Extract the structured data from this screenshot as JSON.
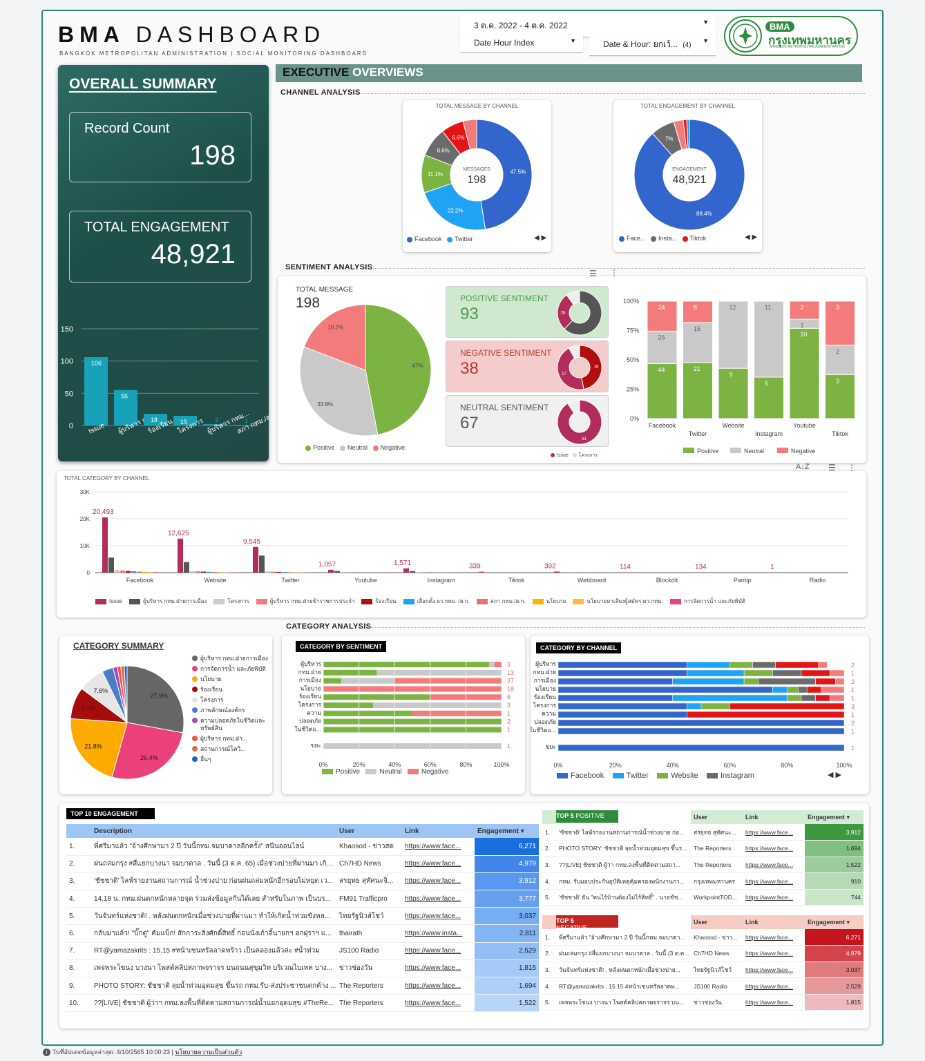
{
  "header": {
    "brand_bold": "BMA",
    "brand_light": "DASHBOARD",
    "subtitle": "BANGKOK METROPOLITAN ADMINISTRATION | SOCIAL MONITORING DASHBOARD",
    "date_range": "3 ต.ค. 2022 - 4 ต.ค. 2022",
    "filter1": "Date Hour Index",
    "filter2": "Date & Hour: ยกเว้...",
    "filter2_count": "(4)",
    "logo_top": "BMA",
    "logo_main": "กรุงเทพมหานคร",
    "logo_sub": "BANGKOK METROPOLITAN ADMINISTRATION"
  },
  "sidebar": {
    "title": "OVERALL SUMMARY",
    "record_label": "Record Count",
    "record_value": "198",
    "eng_label": "TOTAL ENGAGEMENT",
    "eng_value": "48,921"
  },
  "sidebar_chart": {
    "type": "bar",
    "categories": [
      "Issue",
      "ผู้บริหาร กทม...",
      "ร้องเรียน",
      "โครงการ",
      "ผู้บริหาร กทม...",
      "สภา กทม./ส..."
    ],
    "values": [
      106,
      55,
      18,
      15,
      2,
      1
    ],
    "yticks": [
      "150",
      "100",
      "50",
      "0"
    ],
    "ylim": [
      0,
      150
    ],
    "color": "#17a2b8"
  },
  "exec": {
    "title_bold": "EXECUTIVE",
    "title_light": "OVERVIEWS",
    "channel_label": "CHANNEL ANALYSIS",
    "sentiment_label": "SENTIMENT ANALYSIS",
    "category_label": "CATEGORY ANALYSIS"
  },
  "msg_donut": {
    "title": "TOTAL MESSAGE BY CHANNEL",
    "center_label": "MESSAGES",
    "center_value": "198",
    "legend": [
      "Facebook",
      "Twitter"
    ],
    "slices": [
      {
        "label": "47.5%",
        "value": 47.5,
        "color": "#3366cc"
      },
      {
        "label": "22.2%",
        "value": 22.2,
        "color": "#1fa3f2"
      },
      {
        "label": "11.1%",
        "value": 11.1,
        "color": "#7cb342"
      },
      {
        "label": "8.6%",
        "value": 8.6,
        "color": "#6b6b6b"
      },
      {
        "label": "6.6%",
        "value": 6.6,
        "color": "#e31414"
      },
      {
        "label": "",
        "value": 4.0,
        "color": "#f47b7b"
      }
    ]
  },
  "eng_donut": {
    "title": "TOTAL ENGAGEMENT BY CHANNEL",
    "center_label": "ENGAGEMENT",
    "center_value": "48,921",
    "legend": [
      "Face...",
      "Insta...",
      "Tiktok"
    ],
    "slices": [
      {
        "label": "88.4%",
        "value": 88.4,
        "color": "#3366cc"
      },
      {
        "label": "7%",
        "value": 7.0,
        "color": "#6b6b6b"
      },
      {
        "label": "",
        "value": 2.8,
        "color": "#f47b7b"
      },
      {
        "label": "",
        "value": 1.0,
        "color": "#e31414"
      },
      {
        "label": "",
        "value": 0.8,
        "color": "#1fa3f2"
      }
    ]
  },
  "sentiment_pie": {
    "label": "TOTAL MESSAGE",
    "value": "198",
    "legend": [
      "Positive",
      "Neutral",
      "Negative"
    ],
    "slices": [
      {
        "label": "47%",
        "value": 47,
        "color": "#7cb342"
      },
      {
        "label": "33.8%",
        "value": 33.8,
        "color": "#c9c9c9"
      },
      {
        "label": "19.2%",
        "value": 19.2,
        "color": "#f47b7b"
      }
    ]
  },
  "sentiment_cards": [
    {
      "label": "POSITIVE SENTIMENT",
      "value": "93",
      "bg": "#cfe8cf",
      "fg": "#4c9a4c",
      "ring": [
        {
          "label": "",
          "value": 62,
          "color": "#555"
        },
        {
          "label": "28",
          "value": 28,
          "color": "#b22d5b"
        },
        {
          "label": "",
          "value": 10,
          "color": "#eee"
        }
      ]
    },
    {
      "label": "NEGATIVE SENTIMENT",
      "value": "38",
      "bg": "#f4cccc",
      "fg": "#c0392b",
      "ring": [
        {
          "label": "18",
          "value": 47,
          "color": "#b30d0d"
        },
        {
          "label": "17",
          "value": 45,
          "color": "#b22d5b"
        },
        {
          "label": "",
          "value": 8,
          "color": "#eee"
        }
      ]
    },
    {
      "label": "NEUTRAL SENTIMENT",
      "value": "67",
      "bg": "#f0f0f0",
      "fg": "#555",
      "ring": [
        {
          "label": "61",
          "value": 91,
          "color": "#b22d5b"
        },
        {
          "label": "",
          "value": 9,
          "color": "#eee"
        }
      ]
    }
  ],
  "ring_legend": [
    "Issue",
    "โครงการ"
  ],
  "stacked_channel": {
    "type": "bar",
    "yticks": [
      "100%",
      "75%",
      "50%",
      "25%",
      "0%"
    ],
    "channels": [
      "Facebook",
      "Twitter",
      "Website",
      "Instagram",
      "Youtube",
      "Tiktok"
    ],
    "positive": [
      44,
      21,
      9,
      6,
      10,
      3
    ],
    "neutral": [
      26,
      15,
      12,
      11,
      1,
      2
    ],
    "negative": [
      24,
      8,
      0,
      0,
      2,
      3
    ],
    "neutral_labels": [
      "26",
      "15",
      "12",
      "11",
      "1",
      "2"
    ],
    "negative_labels": [
      "24",
      "8",
      "",
      "",
      "2",
      "3"
    ],
    "positive_labels": [
      "44",
      "21",
      "9",
      "6",
      "10",
      "3"
    ],
    "legend": [
      "Positive",
      "Neutral",
      "Negative"
    ]
  },
  "category_by_channel": {
    "title": "TOTAL CATEGORY BY CHANNEL",
    "yticks": [
      "30K",
      "20K",
      "10K",
      "0"
    ],
    "channels": [
      "Facebook",
      "Website",
      "Twitter",
      "Youtube",
      "Instagram",
      "Tiktok",
      "Webboard",
      "Blockdit",
      "Pantip",
      "Radio"
    ],
    "top_labels": [
      "20,493",
      "12,625",
      "9,545",
      "1,057",
      "1,571",
      "339",
      "392",
      "114",
      "134",
      "1"
    ],
    "issue": [
      20493,
      12625,
      9545,
      1057,
      1571,
      339,
      392,
      114,
      134,
      1
    ],
    "second": [
      5591,
      3910,
      6322,
      600,
      560,
      60,
      120,
      20,
      0,
      0
    ],
    "legend": [
      "Issue",
      "ผู้บริหาร กทม.ฝ่ายการเมือง",
      "โครงการ",
      "ผู้บริหาร กทม.ฝ่ายข้าราชการประจำ",
      "ร้องเรียน",
      "เลือกตั้ง ผว.กทม. /ส.ก.",
      "สภา กทม./ส.ก.",
      "นโยบาย",
      "นโยบายหาเสียงผู้สมัคร ผว.กทม.",
      "การจัดการน้ำ และภัยพิบัติ"
    ],
    "legend_colors": [
      "#b22d5b",
      "#555555",
      "#cccccc",
      "#f47b7b",
      "#b30d0d",
      "#1fa3f2",
      "#e57373",
      "#ffb300",
      "#ffb74d",
      "#ec407a"
    ]
  },
  "category_summary": {
    "title": "CATEGORY SUMMARY",
    "slices": [
      {
        "label": "27.9%",
        "value": 27.9,
        "color": "#666666"
      },
      {
        "label": "26.4%",
        "value": 26.4,
        "color": "#ec407a"
      },
      {
        "label": "21.8%",
        "value": 21.8,
        "color": "#ffaa00"
      },
      {
        "label": "9.1%",
        "value": 9.1,
        "color": "#a50d0d"
      },
      {
        "label": "7.6%",
        "value": 7.6,
        "color": "#e6e6e6"
      },
      {
        "label": "",
        "value": 3.2,
        "color": "#4a7fc1"
      },
      {
        "label": "",
        "value": 1.2,
        "color": "#ab47bc"
      },
      {
        "label": "",
        "value": 1.0,
        "color": "#ef5350"
      },
      {
        "label": "",
        "value": 1.0,
        "color": "#d4704a"
      },
      {
        "label": "",
        "value": 0.8,
        "color": "#1565c0"
      }
    ],
    "legend": [
      {
        "text": "ผู้บริหาร กทม.ฝ่ายการเมือง",
        "color": "#666666"
      },
      {
        "text": "การจัดการน้ำ และภัยพิบัติ",
        "color": "#ec407a"
      },
      {
        "text": "นโยบาย",
        "color": "#ffaa00"
      },
      {
        "text": "ร้องเรียน",
        "color": "#a50d0d"
      },
      {
        "text": "โครงการ",
        "color": "#e6e6e6"
      },
      {
        "text": "ภาพลักษณ์องค์กร",
        "color": "#4a7fc1"
      },
      {
        "text": "ความปลอดภัยในชีวิตและทรัพย์สิน",
        "color": "#ab47bc"
      },
      {
        "text": "ผู้บริหาร กทม.ฝ่า...",
        "color": "#ef5350"
      },
      {
        "text": "สถานการณ์โควิ...",
        "color": "#d4704a"
      },
      {
        "text": "อื่นๆ",
        "color": "#1565c0"
      }
    ]
  },
  "cat_sentiment": {
    "title": "CATEGORY BY SENTIMENT",
    "rows": [
      "ผู้บริหาร",
      "กทม.ฝ่าย",
      "การเมือง",
      "นโยบาย",
      "ร้องเรียน",
      "โครงการ",
      "ความ",
      "ปลอดภัย",
      "ในชีวิตแ...",
      "",
      "ขยะ"
    ],
    "positive": [
      93,
      30,
      10,
      0,
      60,
      28,
      50,
      100,
      100,
      0,
      0
    ],
    "neutral": [
      3,
      70,
      30,
      0,
      0,
      72,
      0,
      0,
      0,
      0,
      100
    ],
    "negative": [
      4,
      0,
      60,
      100,
      40,
      0,
      50,
      0,
      0,
      0,
      0
    ],
    "right_labels": [
      "3",
      "13",
      "37",
      "18",
      "6",
      "3",
      "1",
      "2",
      "1",
      "",
      "1"
    ],
    "xticks": [
      "0%",
      "20%",
      "40%",
      "60%",
      "80%",
      "100%"
    ],
    "legend": [
      "Positive",
      "Neutral",
      "Negative"
    ]
  },
  "cat_channel": {
    "title": "CATEGORY BY CHANNEL",
    "rows": [
      "ผู้บริหาร",
      "กทม.ฝ่าย",
      "การเมือง",
      "นโยบาย",
      "ร้องเรียน",
      "โครงการ",
      "ความ",
      "ปลอดภัย",
      "ในชีวิตแ...",
      "",
      "ขยะ"
    ],
    "xticks": [
      "0%",
      "20%",
      "40%",
      "60%",
      "80%",
      "100%"
    ],
    "legend": [
      "Facebook",
      "Twitter",
      "Website",
      "Instagram"
    ],
    "right_labels": [
      "2",
      "1",
      "2",
      "1",
      "1",
      "3",
      "1",
      "2",
      "1",
      "",
      "1"
    ]
  },
  "top10": {
    "title": "TOP 10 ENGAGEMENT",
    "cols": [
      "Description",
      "User",
      "Link",
      "Engagement"
    ],
    "rows": [
      [
        "1.",
        "พี่ศรีมาแล้ว \"อ้างศึกษามา 2 ปี วันนี้กทม.จมบาดาลอีกครั้ง\" สนีนออนไลน์",
        "Khaosod - ข่าวสด",
        "https://www.face...",
        "6,271"
      ],
      [
        "2.",
        "ฝนถล่มกรุง #สี่แยกบางนา จมบาดาล . วันนี้ (3 ต.ค. 65) เมื่อช่วงบ่ายที่ผ่านมา เกิ...",
        "Ch7HD News",
        "https://www.face...",
        "4,979"
      ],
      [
        "3.",
        "'ชัชชาติ' ไลฟ์รายงานสถานการณ์ น้ำช่วงบ่าย ก่อนฝนถล่มหนักอีกรอบไม่หยุด เว...",
        "สรยุทธ สุทัศนะจิ...",
        "https://www.face...",
        "3,912"
      ],
      [
        "4.",
        "14.18 น. กทม.ฝนตกหนักหลายจุด ร่วมส่งข้อมูลกันได้เลย สำหรับในภาพ เป็นบร...",
        "FM91 Trafficpro",
        "https://www.face...",
        "3,777"
      ],
      [
        "5.",
        "วันจันทร์แห่งชาติ! . หลังฝนตกหนักเมื่อช่วงบ่ายที่ผ่านมา ทำให้เกิดน้ำท่วมขังหล...",
        "ไทยรัฐนิวส์โชว์",
        "https://www.face...",
        "3,037"
      ],
      [
        "6.",
        "กลับมาแล้ว! \"บิ๊กตู่\" คัมแบ็ก! สักการะสิ่งศักดิ์สิทธิ์ ก่อนนั่งเก้าอี้นายกฯ อกฝุ่ราฯ แ...",
        "thairath",
        "https://www.insta...",
        "2,811"
      ],
      [
        "7.",
        "RT@yamazakrits : 15.15 #หน้าเซนทรัลลาดพร้าว เป็นคลองแล้วค่ะ #น้ำท่วม",
        "JS100 Radio",
        "https://www.face...",
        "2,529"
      ],
      [
        "8.",
        "เพจพระโขนง บางนา โพสต์คลิปสภาพจราจร บนถนนสุขุมวิท บริเวณไบเทค บาง...",
        "ข่าวช่องวัน",
        "https://www.face...",
        "1,815"
      ],
      [
        "9.",
        "PHOTO STORY: ชัชชาติ ลุยน้ำท่วมอุดมสุข ขึ้นรถ กทม.รับ-ส่งประชาชนตกค้าง ...",
        "The Reporters",
        "https://www.face...",
        "1,694"
      ],
      [
        "10.",
        "??[LIVE] ชัชชาติ ผู้ว่าฯ กทม.ลงพื้นที่ติดตามสถานการณ์น้ำแยกอุดมสุข #TheRe...",
        "The Reporters",
        "https://www.face...",
        "1,522"
      ]
    ]
  },
  "top5pos": {
    "title_bold": "TOP 5",
    "title_light": "POSITIVE",
    "cols": [
      "User",
      "Link",
      "Engagement"
    ],
    "rows": [
      [
        "1.",
        "'ชัชชาติ' ไลฟ์รายงานสถานการณ์น้ำช่วงบ่าย ก่อ...",
        "สรยุทธ สุทัศนะ...",
        "https://www.face...",
        "3,912"
      ],
      [
        "2.",
        "PHOTO STORY: ชัชชาติ ลุยน้ำท่วมอุดมสุข ขึ้นร...",
        "The Reporters",
        "https://www.face...",
        "1,694"
      ],
      [
        "3.",
        "??[LIVE] ชัชชาติ ผู้ว่า กทม.ลงพื้นที่ติดตามสถา...",
        "The Reporters",
        "https://www.face...",
        "1,522"
      ],
      [
        "4.",
        "กทม. รับมอบประกันอุบัติเหตุคุ้มครองพนักงานกว...",
        "กรุงเทพมหานคร",
        "https://www.face...",
        "910"
      ],
      [
        "5.",
        "'ชัชชาติ' ยัน \"คนไร้บ้านต้องไม่ไร้สิทธิ์\" . นายชัช...",
        "WorkpointTOD...",
        "https://www.face...",
        "744"
      ]
    ]
  },
  "top5neg": {
    "title_bold": "TOP 5",
    "title_light": "NEGATIVE",
    "cols": [
      "User",
      "Link",
      "Engagement"
    ],
    "rows": [
      [
        "1.",
        "พี่ศรีมาแล้ว \"อ้างศึกษามา 2 ปี วันนี้กทม.จมบาดา...",
        "Khaosod - ข่าว...",
        "https://www.face...",
        "6,271"
      ],
      [
        "2.",
        "ฝนถล่มกรุง #สี่แยกบางนา จมบาดาล . วันนี้ (3 ต.ค...",
        "Ch7HD News",
        "https://www.face...",
        "4,979"
      ],
      [
        "3.",
        "วันจันทร์แห่งชาติ! . หลังฝนตกหนักเมื่อช่วงบ่าย...",
        "ไทยรัฐนิวส์โชว์",
        "https://www.face...",
        "3,037"
      ],
      [
        "4.",
        "RT@yamazakrits : 15.15 #หน้าเซนทรัลลาดพ...",
        "JS100 Radio",
        "https://www.face...",
        "2,529"
      ],
      [
        "5.",
        "เพจพระโขนง บางนา โพสต์คลิปสภาพจราจร บน...",
        "ข่าวช่องวัน",
        "https://www.face...",
        "1,815"
      ]
    ]
  },
  "footer": {
    "text": "วันที่อัปเดตข้อมูลล่าสุด: 4/10/2565 10:00:23",
    "privacy": "นโยบายความเป็นส่วนตัว"
  }
}
